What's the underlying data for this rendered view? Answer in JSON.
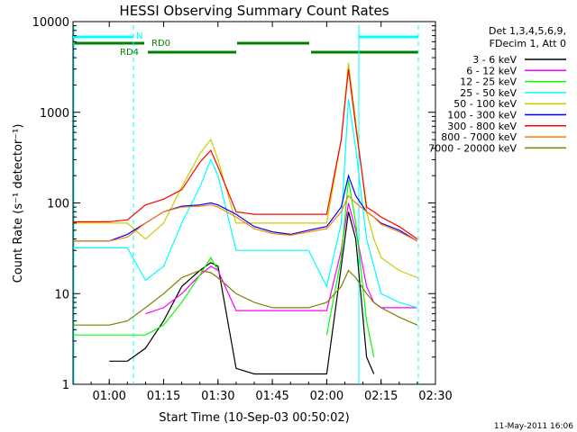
{
  "chart_data": {
    "type": "line",
    "title": "HESSI Observing Summary Count Rates",
    "xlabel": "Start Time (10-Sep-03 00:50:02)",
    "ylabel": "Count Rate (s⁻¹ detector⁻¹)",
    "y_scale": "log",
    "ylim": [
      1,
      10000
    ],
    "xlim": [
      "00:50",
      "02:30"
    ],
    "x_ticks": [
      "01:00",
      "01:15",
      "01:30",
      "01:45",
      "02:00",
      "02:15",
      "02:30"
    ],
    "y_ticks": [
      "1",
      "10",
      "100",
      "1000",
      "10000"
    ],
    "legend_header": [
      "Det 1,3,4,5,6,9,",
      "FDecim 1, Att 0"
    ],
    "footer_date": "11-May-2011 16:06",
    "flag_labels": {
      "night": "N",
      "rd0": "RD0",
      "rd4": "RD4"
    },
    "flag_colors": {
      "night": "#00ffff",
      "rd": "#007f00"
    },
    "series": [
      {
        "name": "3 - 6 keV",
        "color": "#000000",
        "x": [
          "00:50",
          "00:55",
          "01:00",
          "01:05",
          "01:10",
          "01:15",
          "01:20",
          "01:25",
          "01:28",
          "01:30",
          "01:35",
          "01:40",
          "01:45",
          "01:50",
          "01:55",
          "02:00",
          "02:04",
          "02:06",
          "02:08",
          "02:11",
          "02:13",
          "02:15",
          "02:20",
          "02:25",
          "02:30"
        ],
        "y": [
          null,
          null,
          1.8,
          1.8,
          2.5,
          5,
          12,
          18,
          22,
          20,
          1.5,
          1.3,
          1.3,
          1.3,
          1.3,
          1.3,
          20,
          80,
          40,
          2,
          1.3,
          null,
          null,
          null,
          null
        ]
      },
      {
        "name": "6 - 12 keV",
        "color": "#ff00ff",
        "x": [
          "00:50",
          "00:55",
          "01:00",
          "01:05",
          "01:10",
          "01:15",
          "01:20",
          "01:25",
          "01:28",
          "01:30",
          "01:35",
          "01:40",
          "01:45",
          "01:50",
          "01:55",
          "02:00",
          "02:04",
          "02:06",
          "02:08",
          "02:11",
          "02:13",
          "02:15",
          "02:20",
          "02:25",
          "02:30"
        ],
        "y": [
          null,
          null,
          null,
          null,
          6,
          7,
          10,
          16,
          20,
          18,
          6.5,
          6.5,
          6.5,
          6.5,
          6.5,
          6.5,
          30,
          100,
          50,
          12,
          8,
          7,
          7,
          7,
          null
        ]
      },
      {
        "name": "12 - 25 keV",
        "color": "#00ff00",
        "x": [
          "00:50",
          "00:55",
          "01:00",
          "01:05",
          "01:10",
          "01:15",
          "01:20",
          "01:25",
          "01:28",
          "01:30",
          "01:35",
          "01:40",
          "01:45",
          "01:50",
          "01:55",
          "02:00",
          "02:04",
          "02:06",
          "02:08",
          "02:11",
          "02:13",
          "02:15",
          "02:20",
          "02:25",
          "02:30"
        ],
        "y": [
          3.5,
          3.5,
          3.5,
          3.5,
          3.5,
          4.5,
          8,
          16,
          25,
          18,
          null,
          null,
          null,
          null,
          null,
          3.5,
          25,
          180,
          60,
          5,
          2,
          null,
          null,
          null,
          null
        ]
      },
      {
        "name": "25 - 50 keV",
        "color": "#00ffff",
        "x": [
          "00:50",
          "00:55",
          "01:00",
          "01:05",
          "01:10",
          "01:15",
          "01:20",
          "01:25",
          "01:28",
          "01:30",
          "01:35",
          "01:40",
          "01:45",
          "01:50",
          "01:55",
          "02:00",
          "02:04",
          "02:06",
          "02:08",
          "02:11",
          "02:13",
          "02:15",
          "02:20",
          "02:25",
          "02:30"
        ],
        "y": [
          32,
          32,
          32,
          32,
          14,
          20,
          60,
          150,
          300,
          200,
          30,
          30,
          30,
          30,
          30,
          12,
          60,
          1400,
          400,
          40,
          20,
          10,
          8,
          7,
          null
        ]
      },
      {
        "name": "50 - 100 keV",
        "color": "#cccc00",
        "x": [
          "00:50",
          "00:55",
          "01:00",
          "01:05",
          "01:10",
          "01:15",
          "01:20",
          "01:25",
          "01:28",
          "01:30",
          "01:35",
          "01:40",
          "01:45",
          "01:50",
          "01:55",
          "02:00",
          "02:04",
          "02:06",
          "02:08",
          "02:11",
          "02:13",
          "02:15",
          "02:20",
          "02:25",
          "02:30"
        ],
        "y": [
          60,
          60,
          60,
          60,
          40,
          60,
          150,
          350,
          500,
          300,
          60,
          60,
          60,
          60,
          60,
          60,
          500,
          3500,
          800,
          80,
          40,
          25,
          18,
          15,
          null
        ]
      },
      {
        "name": "100 - 300 keV",
        "color": "#0000ff",
        "x": [
          "00:50",
          "00:55",
          "01:00",
          "01:05",
          "01:10",
          "01:15",
          "01:20",
          "01:25",
          "01:28",
          "01:30",
          "01:35",
          "01:40",
          "01:45",
          "01:50",
          "01:55",
          "02:00",
          "02:04",
          "02:06",
          "02:08",
          "02:11",
          "02:13",
          "02:15",
          "02:20",
          "02:25",
          "02:30"
        ],
        "y": [
          38,
          38,
          38,
          45,
          60,
          80,
          92,
          95,
          100,
          95,
          75,
          55,
          48,
          45,
          50,
          55,
          90,
          200,
          120,
          80,
          70,
          60,
          50,
          38,
          null
        ]
      },
      {
        "name": "300 - 800 keV",
        "color": "#ff0000",
        "x": [
          "00:50",
          "00:55",
          "01:00",
          "01:05",
          "01:10",
          "01:15",
          "01:20",
          "01:25",
          "01:28",
          "01:30",
          "01:35",
          "01:40",
          "01:45",
          "01:50",
          "01:55",
          "02:00",
          "02:04",
          "02:06",
          "02:08",
          "02:11",
          "02:13",
          "02:15",
          "02:20",
          "02:25",
          "02:30"
        ],
        "y": [
          62,
          62,
          62,
          65,
          95,
          110,
          140,
          280,
          380,
          250,
          80,
          75,
          75,
          75,
          75,
          75,
          500,
          3000,
          700,
          90,
          80,
          70,
          55,
          40,
          null
        ]
      },
      {
        "name": "800 - 7000 keV",
        "color": "#ff7f00",
        "x": [
          "00:50",
          "00:55",
          "01:00",
          "01:05",
          "01:10",
          "01:15",
          "01:20",
          "01:25",
          "01:28",
          "01:30",
          "01:35",
          "01:40",
          "01:45",
          "01:50",
          "01:55",
          "02:00",
          "02:04",
          "02:06",
          "02:08",
          "02:11",
          "02:13",
          "02:15",
          "02:20",
          "02:25",
          "02:30"
        ],
        "y": [
          38,
          38,
          38,
          42,
          60,
          80,
          90,
          92,
          95,
          90,
          70,
          52,
          46,
          44,
          48,
          52,
          80,
          120,
          100,
          80,
          70,
          58,
          48,
          38,
          null
        ]
      },
      {
        "name": "7000 - 20000 keV",
        "color": "#7f7f00",
        "x": [
          "00:50",
          "00:55",
          "01:00",
          "01:05",
          "01:10",
          "01:15",
          "01:20",
          "01:25",
          "01:28",
          "01:30",
          "01:35",
          "01:40",
          "01:45",
          "01:50",
          "01:55",
          "02:00",
          "02:04",
          "02:06",
          "02:08",
          "02:11",
          "02:13",
          "02:15",
          "02:20",
          "02:25",
          "02:30"
        ],
        "y": [
          4.5,
          4.5,
          4.5,
          5,
          7,
          10,
          15,
          18,
          17,
          15,
          10,
          8,
          7,
          7,
          7,
          8,
          12,
          18,
          15,
          10,
          8,
          7,
          5.5,
          4.5,
          null
        ]
      }
    ]
  }
}
